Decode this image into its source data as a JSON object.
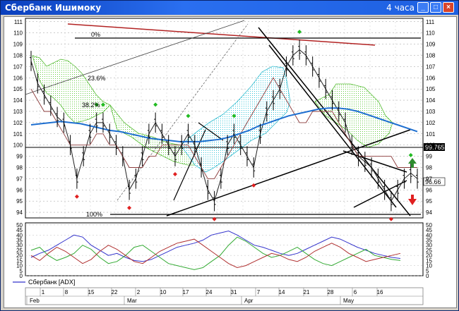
{
  "window": {
    "title": "Сбербанк Ишимоку",
    "timeframe": "4 часа",
    "buttons": {
      "minimize": "_",
      "maximize": "□",
      "close": "×"
    }
  },
  "chart_data": [
    {
      "type": "line",
      "title": "",
      "y_ticks": [
        94,
        95,
        96,
        97,
        98,
        99,
        100,
        101,
        102,
        103,
        104,
        105,
        106,
        107,
        108,
        109,
        110,
        111
      ],
      "ylim": [
        93.5,
        111.3
      ],
      "fib_labels": [
        "0%",
        "23.6%",
        "38.2%",
        "100%"
      ],
      "fib_levels": [
        110,
        105.8,
        103.3,
        94
      ],
      "price_labels": {
        "current": "99.7651",
        "last": "96.66"
      },
      "series": [
        {
          "name": "price",
          "values": [
            107.5,
            105.5,
            104.5,
            103.5,
            102.5,
            102,
            100,
            97,
            99,
            101,
            102,
            102,
            101,
            100,
            99,
            96,
            97,
            99,
            101,
            102,
            101,
            100,
            99,
            100,
            101,
            100,
            98,
            96,
            95,
            97,
            100,
            101,
            100,
            99,
            98,
            101,
            103,
            104,
            105,
            107,
            108,
            108.5,
            108,
            107,
            106,
            105,
            104,
            103,
            102,
            100,
            99,
            98.5,
            98,
            97,
            96,
            95,
            96,
            97,
            97.5,
            97
          ]
        },
        {
          "name": "cloud-span",
          "values": [
            105,
            104,
            103,
            103,
            102,
            101,
            100,
            100,
            100,
            100,
            101,
            101,
            100,
            100,
            99,
            98,
            98,
            98,
            99,
            99,
            100,
            100,
            100,
            100,
            100,
            99,
            98,
            97,
            97,
            98,
            99,
            100,
            101,
            102,
            103,
            104,
            105,
            106,
            105,
            104,
            103,
            102,
            102,
            103,
            103,
            103,
            103,
            102,
            101,
            100,
            99,
            99,
            99,
            99,
            99,
            99,
            98,
            98,
            98,
            98
          ]
        },
        {
          "name": "sma",
          "values": [
            101.8,
            101.9,
            102.0,
            102.1,
            102.0,
            101.9,
            101.7,
            101.5,
            101.3,
            101.2,
            101.0,
            100.8,
            100.6,
            100.5,
            100.4,
            100.3,
            100.3,
            100.3,
            100.4,
            100.5,
            100.7,
            101.0,
            101.3,
            101.7,
            102.0,
            102.3,
            102.6,
            102.8,
            103.0,
            103.2,
            103.3,
            103.3,
            103.2,
            103.0,
            102.7,
            102.4,
            102.1,
            101.8,
            101.5,
            101.2
          ]
        }
      ]
    },
    {
      "type": "line",
      "title": "",
      "legend": "Сбербанк [ADX]",
      "y_ticks": [
        0,
        5,
        10,
        15,
        20,
        25,
        30,
        35,
        40,
        45,
        50
      ],
      "ylim": [
        0,
        52
      ],
      "series": [
        {
          "name": "adx",
          "values": [
            18,
            22,
            25,
            30,
            35,
            40,
            38,
            30,
            25,
            20,
            22,
            18,
            15,
            14,
            16,
            20,
            24,
            28,
            30,
            32,
            35,
            40,
            42,
            44,
            40,
            35,
            30,
            28,
            25,
            22,
            20,
            22,
            26,
            30,
            34,
            38,
            36,
            32,
            28,
            25,
            22,
            20,
            18,
            17
          ]
        },
        {
          "name": "di-plus",
          "values": [
            25,
            28,
            20,
            15,
            18,
            22,
            30,
            26,
            18,
            12,
            14,
            20,
            28,
            30,
            24,
            18,
            12,
            10,
            8,
            6,
            8,
            14,
            20,
            30,
            38,
            34,
            28,
            22,
            18,
            20,
            24,
            28,
            22,
            16,
            12,
            10,
            14,
            18,
            22,
            26,
            20,
            18,
            16,
            15
          ]
        },
        {
          "name": "di-minus",
          "values": [
            20,
            15,
            22,
            28,
            24,
            18,
            12,
            16,
            24,
            30,
            26,
            20,
            14,
            12,
            18,
            24,
            28,
            32,
            34,
            36,
            30,
            24,
            18,
            12,
            8,
            10,
            14,
            18,
            22,
            20,
            16,
            14,
            18,
            24,
            28,
            32,
            28,
            22,
            18,
            14,
            16,
            18,
            20,
            22
          ]
        }
      ]
    }
  ],
  "x_axis": {
    "days": [
      "1",
      "8",
      "15",
      "22",
      "2",
      "10",
      "17",
      "24",
      "31",
      "7",
      "14",
      "21",
      "28",
      "6",
      "16"
    ],
    "months": [
      "Feb",
      "Mar",
      "Apr",
      "May"
    ]
  }
}
